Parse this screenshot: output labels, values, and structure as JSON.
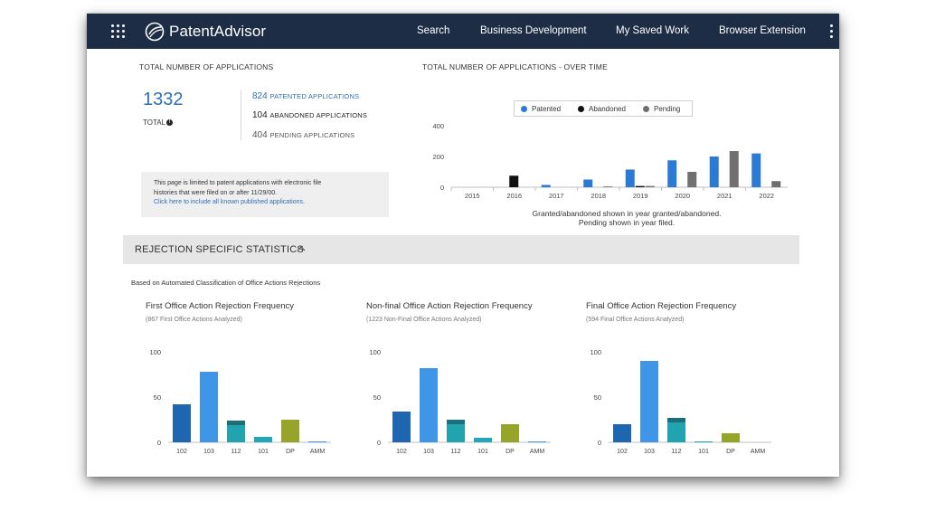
{
  "nav": {
    "brand": "PatentAdvisor",
    "items": [
      "Search",
      "Business Development",
      "My Saved Work",
      "Browser Extension"
    ]
  },
  "totals": {
    "title": "Total Number of Applications",
    "total_value": "1332",
    "total_label": "Total",
    "stats": [
      {
        "value": "824",
        "label": "Patented Applications",
        "color": "#2d6fb5"
      },
      {
        "value": "104",
        "label": "Abandoned Applications",
        "color": "#222222"
      },
      {
        "value": "404",
        "label": "Pending Applications",
        "color": "#555555"
      }
    ],
    "note_line1": "This page is limited to patent applications with electronic file",
    "note_line2": "histories that were filed on or after 11/29/00.",
    "note_link": "Click here to include all known published applications."
  },
  "over_time": {
    "title": "Total Number of Applications - Over Time",
    "caption_line1": "Granted/abandoned shown in year granted/abandoned.",
    "caption_line2": "Pending shown in year filed."
  },
  "rejections": {
    "section_title": "Rejection Specific Statistics",
    "based_on": "Based on Automated Classification of Office Actions Rejections",
    "charts": [
      {
        "title": "First Office Action Rejection Frequency",
        "subtitle": "(867 First Office Actions Analyzed)"
      },
      {
        "title": "Non-final Office Action Rejection Frequency",
        "subtitle": "(1223 Non-Final Office Actions Analyzed)"
      },
      {
        "title": "Final Office Action Rejection Frequency",
        "subtitle": "(594 Final Office Actions Analyzed)"
      }
    ]
  },
  "chart_data": [
    {
      "type": "bar",
      "categories": [
        "2015",
        "2016",
        "2017",
        "2018",
        "2019",
        "2020",
        "2021",
        "2022"
      ],
      "series": [
        {
          "name": "Patented",
          "color": "#2b7bd6",
          "values": [
            0,
            0,
            15,
            50,
            115,
            175,
            200,
            220
          ]
        },
        {
          "name": "Abandoned",
          "color": "#111111",
          "values": [
            0,
            75,
            0,
            0,
            8,
            0,
            0,
            0
          ]
        },
        {
          "name": "Pending",
          "color": "#707070",
          "values": [
            0,
            0,
            0,
            5,
            8,
            100,
            235,
            40
          ]
        }
      ],
      "yticks": [
        0,
        200,
        400
      ],
      "ylim": [
        0,
        400
      ],
      "legend": "top"
    },
    {
      "type": "bar",
      "categories": [
        "102",
        "103",
        "112",
        "101",
        "DP",
        "AMM"
      ],
      "colors": [
        "#1f66b0",
        "#3f95e6",
        "#22a4b0",
        "#20a8ba",
        "#96a52a",
        "#3f95e6"
      ],
      "values": [
        42,
        78,
        24,
        6,
        25,
        1
      ],
      "yticks": [
        0,
        50,
        100
      ],
      "ylim": [
        0,
        100
      ]
    },
    {
      "type": "bar",
      "categories": [
        "102",
        "103",
        "112",
        "101",
        "DP",
        "AMM"
      ],
      "colors": [
        "#1f66b0",
        "#3f95e6",
        "#22a4b0",
        "#20a8ba",
        "#96a52a",
        "#3f95e6"
      ],
      "values": [
        34,
        82,
        25,
        5,
        20,
        1
      ],
      "yticks": [
        0,
        50,
        100
      ],
      "ylim": [
        0,
        100
      ]
    },
    {
      "type": "bar",
      "categories": [
        "102",
        "103",
        "112",
        "101",
        "DP",
        "AMM"
      ],
      "colors": [
        "#1f66b0",
        "#3f95e6",
        "#22a4b0",
        "#20a8ba",
        "#96a52a",
        "#3f95e6"
      ],
      "values": [
        20,
        90,
        27,
        1,
        10,
        0
      ],
      "yticks": [
        0,
        50,
        100
      ],
      "ylim": [
        0,
        100
      ]
    }
  ]
}
